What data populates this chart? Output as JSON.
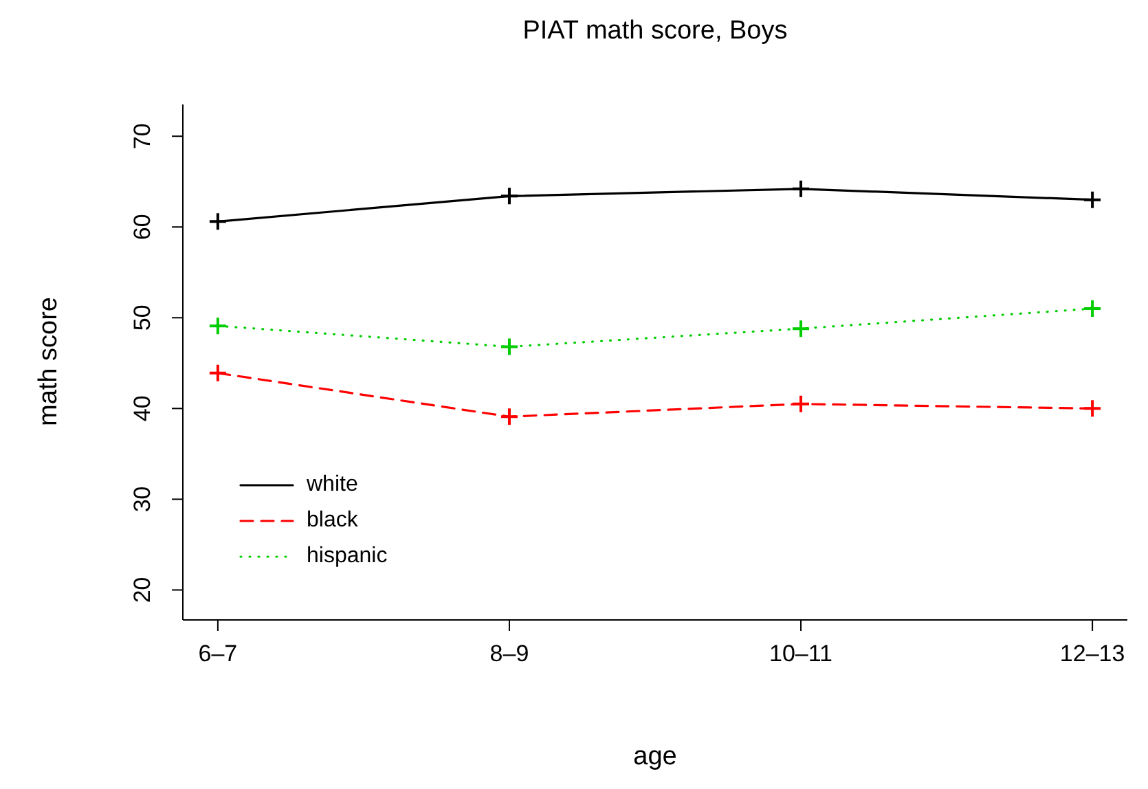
{
  "chart_data": {
    "type": "line",
    "title": "PIAT math score, Boys",
    "xlabel": "age",
    "ylabel": "math score",
    "categories": [
      "6–7",
      "8–9",
      "10–11",
      "12–13"
    ],
    "series": [
      {
        "name": "white",
        "color": "#000000",
        "line_style": "solid",
        "values": [
          60.6,
          63.4,
          64.2,
          63.0
        ]
      },
      {
        "name": "black",
        "color": "#ff0000",
        "line_style": "dashed",
        "values": [
          43.9,
          39.1,
          40.5,
          40.0
        ]
      },
      {
        "name": "hispanic",
        "color": "#00cd00",
        "line_style": "dotted",
        "values": [
          49.1,
          46.8,
          48.8,
          51.0
        ]
      }
    ],
    "ylim": [
      16.7,
      73.5
    ],
    "yticks": [
      20,
      30,
      40,
      50,
      60,
      70
    ],
    "marker": "cross",
    "legend": "bottom left",
    "grid": false
  }
}
